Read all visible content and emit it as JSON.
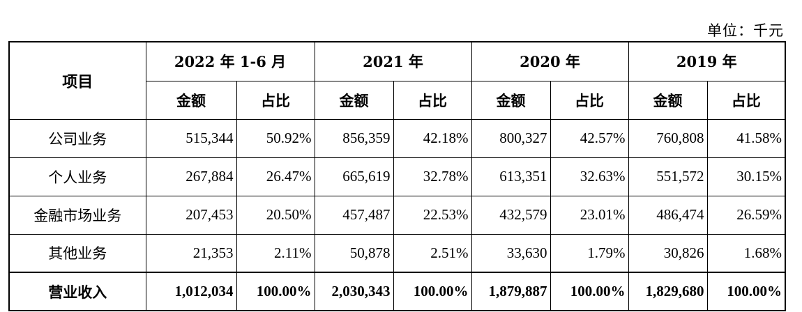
{
  "unit_label": "单位：千元",
  "table": {
    "item_header": "项目",
    "periods": [
      "2022 年 1-6 月",
      "2021 年",
      "2020 年",
      "2019 年"
    ],
    "sub_headers": {
      "amount": "金额",
      "ratio": "占比"
    },
    "rows": [
      {
        "name": "公司业务",
        "cells": [
          "515,344",
          "50.92%",
          "856,359",
          "42.18%",
          "800,327",
          "42.57%",
          "760,808",
          "41.58%"
        ]
      },
      {
        "name": "个人业务",
        "cells": [
          "267,884",
          "26.47%",
          "665,619",
          "32.78%",
          "613,351",
          "32.63%",
          "551,572",
          "30.15%"
        ]
      },
      {
        "name": "金融市场业务",
        "cells": [
          "207,453",
          "20.50%",
          "457,487",
          "22.53%",
          "432,579",
          "23.01%",
          "486,474",
          "26.59%"
        ]
      },
      {
        "name": "其他业务",
        "cells": [
          "21,353",
          "2.11%",
          "50,878",
          "2.51%",
          "33,630",
          "1.79%",
          "30,826",
          "1.68%"
        ]
      }
    ],
    "total": {
      "name": "营业收入",
      "cells": [
        "1,012,034",
        "100.00%",
        "2,030,343",
        "100.00%",
        "1,879,887",
        "100.00%",
        "1,829,680",
        "100.00%"
      ]
    }
  }
}
